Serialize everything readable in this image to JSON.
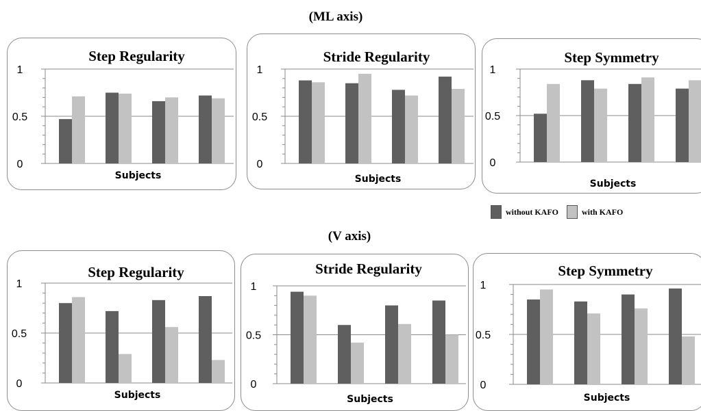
{
  "section_titles": {
    "ml": "(ML axis)",
    "v": "(V axis)"
  },
  "legend": {
    "items": [
      {
        "label": "without KAFO",
        "color": "#5f5f5f"
      },
      {
        "label": "with KAFO",
        "color": "#c2c2c2"
      }
    ]
  },
  "chart_data": [
    {
      "type": "bar",
      "group": "ML axis",
      "title": "Step Regularity",
      "xlabel": "Subjects",
      "ylabel": "",
      "ylim": [
        0,
        1
      ],
      "yticks": [
        "0",
        "0.5",
        "1"
      ],
      "grid": true,
      "series": [
        {
          "name": "without KAFO",
          "values": [
            0.47,
            0.75,
            0.66,
            0.72
          ]
        },
        {
          "name": "with KAFO",
          "values": [
            0.71,
            0.74,
            0.7,
            0.69
          ]
        }
      ]
    },
    {
      "type": "bar",
      "group": "ML axis",
      "title": "Stride Regularity",
      "xlabel": "Subjects",
      "ylabel": "",
      "ylim": [
        0,
        1
      ],
      "yticks": [
        "0",
        "0.5",
        "1"
      ],
      "grid": true,
      "series": [
        {
          "name": "without KAFO",
          "values": [
            0.88,
            0.85,
            0.78,
            0.92
          ]
        },
        {
          "name": "with KAFO",
          "values": [
            0.86,
            0.95,
            0.72,
            0.79
          ]
        }
      ]
    },
    {
      "type": "bar",
      "group": "ML axis",
      "title": "Step Symmetry",
      "xlabel": "Subjects",
      "ylabel": "",
      "ylim": [
        0,
        1
      ],
      "yticks": [
        "0",
        "0.5",
        "1"
      ],
      "grid": true,
      "series": [
        {
          "name": "without KAFO",
          "values": [
            0.52,
            0.88,
            0.84,
            0.79
          ]
        },
        {
          "name": "with KAFO",
          "values": [
            0.84,
            0.79,
            0.91,
            0.88
          ]
        }
      ]
    },
    {
      "type": "bar",
      "group": "V axis",
      "title": "Step Regularity",
      "xlabel": "Subjects",
      "ylabel": "",
      "ylim": [
        0,
        1
      ],
      "yticks": [
        "0",
        "0.5",
        "1"
      ],
      "grid": true,
      "series": [
        {
          "name": "without KAFO",
          "values": [
            0.8,
            0.72,
            0.83,
            0.87
          ]
        },
        {
          "name": "with KAFO",
          "values": [
            0.86,
            0.29,
            0.56,
            0.23
          ]
        }
      ]
    },
    {
      "type": "bar",
      "group": "V axis",
      "title": "Stride Regularity",
      "xlabel": "Subjects",
      "ylabel": "",
      "ylim": [
        0,
        1
      ],
      "yticks": [
        "0",
        "0.5",
        "1"
      ],
      "grid": true,
      "series": [
        {
          "name": "without KAFO",
          "values": [
            0.94,
            0.6,
            0.8,
            0.85
          ]
        },
        {
          "name": "with KAFO",
          "values": [
            0.9,
            0.42,
            0.61,
            0.5
          ]
        }
      ]
    },
    {
      "type": "bar",
      "group": "V axis",
      "title": "Step Symmetry",
      "xlabel": "Subjects",
      "ylabel": "",
      "ylim": [
        0,
        1
      ],
      "yticks": [
        "0",
        "0.5",
        "1"
      ],
      "grid": true,
      "series": [
        {
          "name": "without KAFO",
          "values": [
            0.85,
            0.83,
            0.9,
            0.96
          ]
        },
        {
          "name": "with KAFO",
          "values": [
            0.95,
            0.71,
            0.76,
            0.48
          ]
        }
      ]
    }
  ]
}
